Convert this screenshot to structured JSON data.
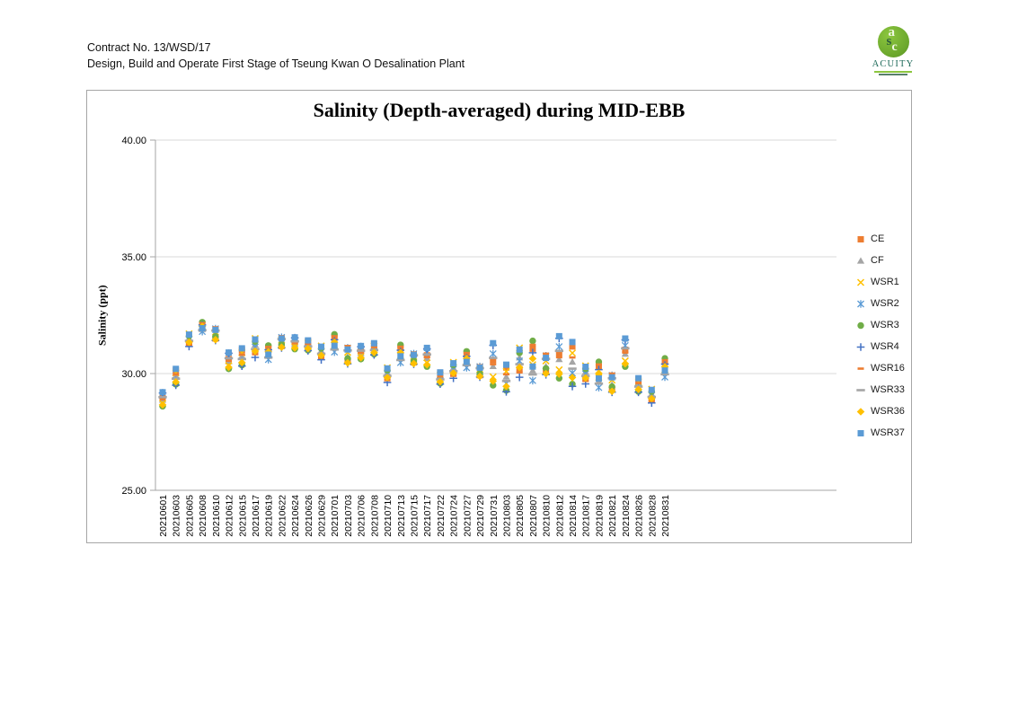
{
  "header": {
    "line1": "Contract No. 13/WSD/17",
    "line2": "Design, Build and Operate First Stage of Tseung Kwan O Desalination Plant"
  },
  "logo": {
    "monogram": "asc",
    "name": "ACUITY"
  },
  "chart_data": {
    "type": "scatter",
    "title": "Salinity (Depth-averaged) during MID-EBB",
    "ylabel": "Salinity (ppt)",
    "xlabel": "",
    "ylim": [
      25,
      40
    ],
    "yticks": [
      40,
      35,
      30,
      25
    ],
    "grid": true,
    "legend_position": "right",
    "colors": {
      "grid": "#d9d9d9",
      "axis": "#a6a6a6",
      "text": "#000000"
    },
    "categories": [
      "20210601",
      "20210603",
      "20210605",
      "20210608",
      "20210610",
      "20210612",
      "20210615",
      "20210617",
      "20210619",
      "20210622",
      "20210624",
      "20210626",
      "20210629",
      "20210701",
      "20210703",
      "20210706",
      "20210708",
      "20210710",
      "20210713",
      "20210715",
      "20210717",
      "20210722",
      "20210724",
      "20210727",
      "20210729",
      "20210731",
      "20210803",
      "20210805",
      "20210807",
      "20210810",
      "20210812",
      "20210814",
      "20210817",
      "20210819",
      "20210821",
      "20210824",
      "20210826",
      "20210828",
      "20210831"
    ],
    "series": [
      {
        "name": "CE",
        "marker": "square",
        "color": "#ED7D31",
        "values": [
          28.96,
          30.13,
          31.31,
          32.12,
          31.5,
          30.62,
          31.0,
          30.92,
          31.08,
          31.18,
          31.35,
          31.38,
          30.75,
          31.53,
          30.53,
          30.96,
          31.25,
          29.8,
          31.08,
          30.48,
          30.78,
          30.0,
          29.99,
          30.81,
          29.93,
          30.58,
          30.26,
          30.19,
          31.06,
          30.09,
          30.88,
          31.16,
          29.77,
          30.28,
          29.32,
          31.02,
          29.74,
          28.9,
          30.49
        ]
      },
      {
        "name": "CF",
        "marker": "triangle",
        "color": "#A5A5A5",
        "values": [
          28.87,
          29.89,
          31.52,
          31.9,
          31.64,
          30.52,
          30.74,
          31.23,
          30.75,
          31.3,
          31.28,
          31.22,
          30.98,
          31.11,
          30.72,
          30.87,
          31.08,
          30.04,
          30.66,
          30.6,
          30.66,
          29.83,
          30.25,
          30.43,
          30.05,
          30.31,
          29.86,
          30.68,
          30.13,
          30.31,
          30.61,
          30.5,
          30.07,
          29.68,
          29.52,
          30.84,
          29.53,
          29.13,
          30.05
        ]
      },
      {
        "name": "WSR1",
        "marker": "x",
        "color": "#FFC000",
        "values": [
          28.72,
          30.03,
          31.7,
          31.96,
          31.78,
          30.34,
          30.89,
          31.5,
          30.84,
          31.43,
          31.15,
          31.31,
          31.18,
          31.22,
          30.91,
          30.73,
          31.18,
          30.25,
          30.77,
          30.73,
          30.46,
          29.93,
          30.48,
          30.53,
          30.18,
          29.86,
          30.09,
          31.1,
          30.38,
          30.54,
          30.16,
          30.88,
          30.33,
          29.84,
          29.72,
          30.54,
          29.65,
          29.33,
          30.17
        ]
      },
      {
        "name": "WSR2",
        "marker": "asterisk",
        "color": "#5B9BD5",
        "values": [
          29.05,
          29.71,
          31.46,
          31.8,
          31.92,
          30.73,
          30.55,
          31.14,
          30.6,
          31.55,
          31.43,
          31.11,
          30.92,
          30.92,
          31.1,
          31.04,
          30.95,
          29.97,
          30.47,
          30.85,
          30.9,
          29.7,
          30.18,
          30.25,
          30.3,
          30.85,
          29.57,
          30.54,
          29.7,
          30.76,
          31.15,
          30.02,
          29.99,
          29.4,
          29.92,
          31.2,
          29.38,
          29.07,
          29.85
        ]
      },
      {
        "name": "WSR3",
        "marker": "circle",
        "color": "#70AD47",
        "values": [
          28.6,
          29.54,
          31.61,
          32.2,
          31.59,
          30.2,
          30.36,
          31.37,
          31.2,
          31.25,
          31.05,
          31.0,
          31.08,
          31.68,
          30.65,
          30.62,
          30.83,
          30.15,
          31.23,
          30.55,
          30.3,
          29.58,
          30.37,
          30.95,
          30.0,
          29.5,
          29.28,
          30.89,
          31.4,
          30.22,
          29.8,
          29.55,
          30.2,
          30.5,
          29.44,
          30.3,
          29.23,
          29.23,
          30.65
        ]
      },
      {
        "name": "WSR4",
        "marker": "plus",
        "color": "#4472C4",
        "values": [
          29.17,
          29.5,
          31.16,
          32.08,
          31.42,
          30.87,
          30.32,
          30.69,
          31.02,
          31.1,
          31.53,
          30.98,
          30.59,
          31.45,
          30.42,
          31.15,
          30.8,
          29.62,
          31.0,
          30.4,
          31.06,
          29.55,
          29.8,
          30.74,
          29.85,
          31.21,
          29.22,
          29.84,
          30.89,
          29.95,
          31.51,
          29.45,
          29.56,
          30.17,
          29.2,
          31.44,
          29.2,
          28.74,
          30.41
        ]
      },
      {
        "name": "WSR16",
        "marker": "dash",
        "color": "#ED7D31",
        "values": [
          28.9,
          29.96,
          31.25,
          32.16,
          31.98,
          30.55,
          30.81,
          30.83,
          31.14,
          31.6,
          31.3,
          31.27,
          30.69,
          31.6,
          31.18,
          30.9,
          31.13,
          29.73,
          31.15,
          30.9,
          30.7,
          29.88,
          29.91,
          30.88,
          30.35,
          30.4,
          29.97,
          30.05,
          31.23,
          30.85,
          30.7,
          30.69,
          29.69,
          30.39,
          30.0,
          30.9,
          29.59,
          28.84,
          30.57
        ]
      },
      {
        "name": "WSR33",
        "marker": "long-dash",
        "color": "#A5A5A5",
        "values": [
          28.99,
          29.78,
          31.4,
          31.86,
          31.84,
          30.66,
          30.62,
          31.05,
          30.69,
          31.48,
          31.38,
          31.16,
          30.85,
          31.03,
          30.99,
          30.98,
          31.0,
          29.9,
          30.58,
          30.78,
          30.82,
          29.75,
          30.1,
          30.36,
          30.23,
          30.67,
          29.68,
          30.4,
          29.96,
          30.63,
          30.97,
          30.21,
          29.9,
          29.57,
          29.8,
          31.08,
          29.44,
          29.0,
          29.97
        ]
      },
      {
        "name": "WSR36",
        "marker": "diamond",
        "color": "#FFC000",
        "values": [
          28.66,
          29.64,
          31.34,
          32.02,
          31.45,
          30.27,
          30.47,
          30.96,
          30.93,
          31.13,
          31.1,
          31.07,
          30.78,
          31.34,
          30.46,
          30.68,
          30.9,
          29.83,
          30.89,
          30.43,
          30.38,
          29.65,
          30.02,
          30.64,
          29.88,
          29.68,
          29.45,
          30.26,
          30.64,
          30.0,
          29.98,
          29.83,
          29.81,
          30.01,
          29.24,
          30.42,
          29.32,
          28.93,
          30.29
        ]
      },
      {
        "name": "WSR37",
        "marker": "square",
        "color": "#5B9BD5",
        "values": [
          29.2,
          30.2,
          31.67,
          31.94,
          31.87,
          30.9,
          31.08,
          31.46,
          30.81,
          31.5,
          31.55,
          31.42,
          31.15,
          31.19,
          31.03,
          31.18,
          31.3,
          30.22,
          30.74,
          30.8,
          31.1,
          30.05,
          30.44,
          30.5,
          30.25,
          31.3,
          30.38,
          31.03,
          30.3,
          30.67,
          31.6,
          31.35,
          30.29,
          29.79,
          29.84,
          31.5,
          29.8,
          29.3,
          30.13
        ]
      }
    ]
  }
}
